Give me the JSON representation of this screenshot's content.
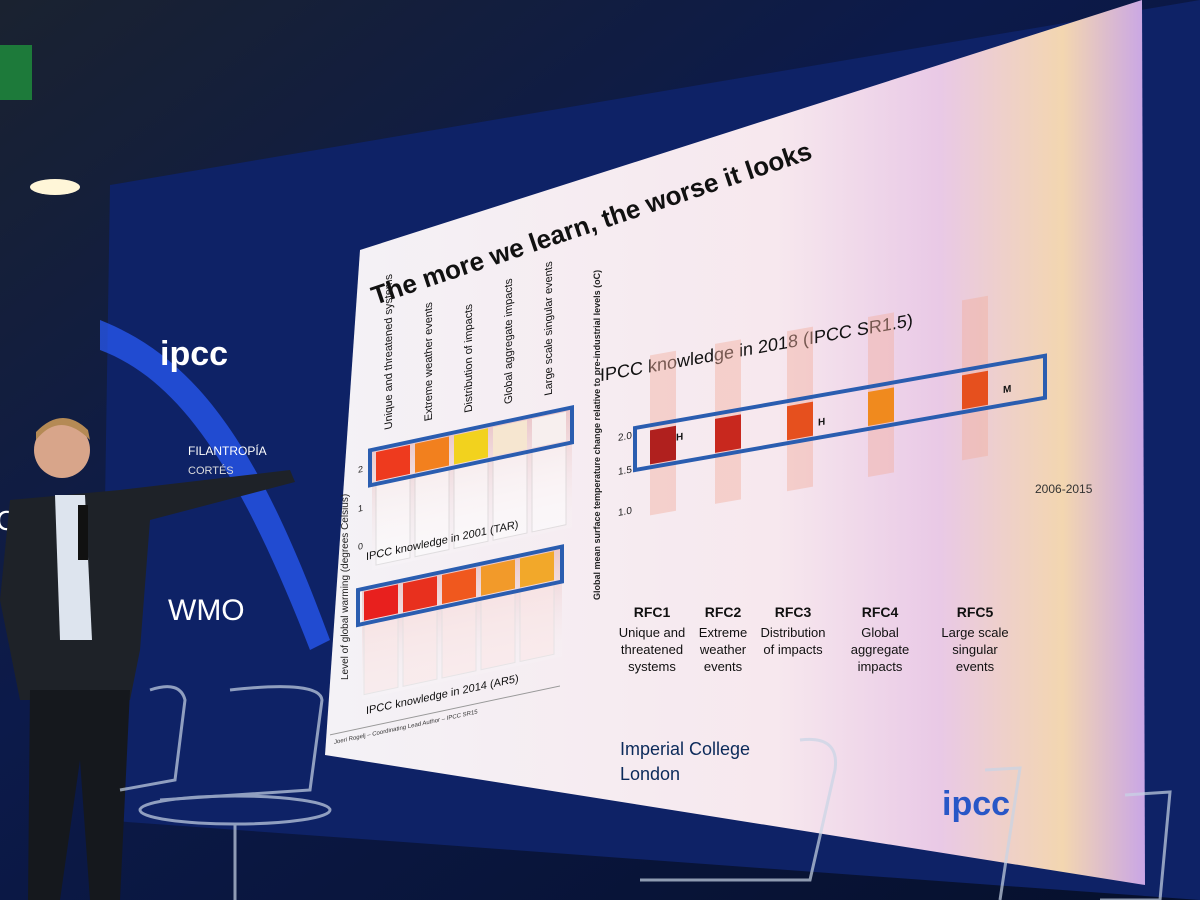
{
  "background": {
    "logo_ipcc": "ipcc",
    "logo_org": "FILANTROPÍA",
    "logo_org_sub": "CORTÉS",
    "logo_wmo": "WMO",
    "logo_cop": "COP"
  },
  "slide": {
    "title": "The more we learn, the worse it looks",
    "left_panel": {
      "column_headers": [
        "Unique and threatened systems",
        "Extreme weather events",
        "Distribution of impacts",
        "Global aggregate impacts",
        "Large scale singular events"
      ],
      "y_axis_label": "Level of global warming (degrees Celsius)",
      "y_ticks": [
        "2",
        "1",
        "0"
      ],
      "panel_2001_label": "IPCC knowledge in 2001 (TAR)",
      "panel_2014_label": "IPCC knowledge in 2014 (AR5)"
    },
    "right_panel": {
      "title": "IPCC knowledge in 2018 (IPCC SR1.5)",
      "y_axis_label": "Global mean surface temperature change relative to pre-industrial levels (oC)",
      "y_ticks": [
        "2.0",
        "1.5",
        "1.0"
      ],
      "period_label": "2006-2015",
      "confidence_labels": [
        "H",
        "H",
        "M"
      ],
      "categories": [
        {
          "code": "RFC1",
          "description": [
            "Unique and",
            "threatened",
            "systems"
          ]
        },
        {
          "code": "RFC2",
          "description": [
            "Extreme",
            "weather",
            "events"
          ]
        },
        {
          "code": "RFC3",
          "description": [
            "Distribution",
            "of impacts"
          ]
        },
        {
          "code": "RFC4",
          "description": [
            "Global",
            "aggregate",
            "impacts"
          ]
        },
        {
          "code": "RFC5",
          "description": [
            "Large scale",
            "singular",
            "events"
          ]
        }
      ]
    },
    "footer": {
      "author": "Joeri Rogelj – Coordinating Lead Author – IPCC SR15",
      "institution": [
        "Imperial College",
        "London"
      ],
      "corner_logo": "ipcc"
    }
  }
}
